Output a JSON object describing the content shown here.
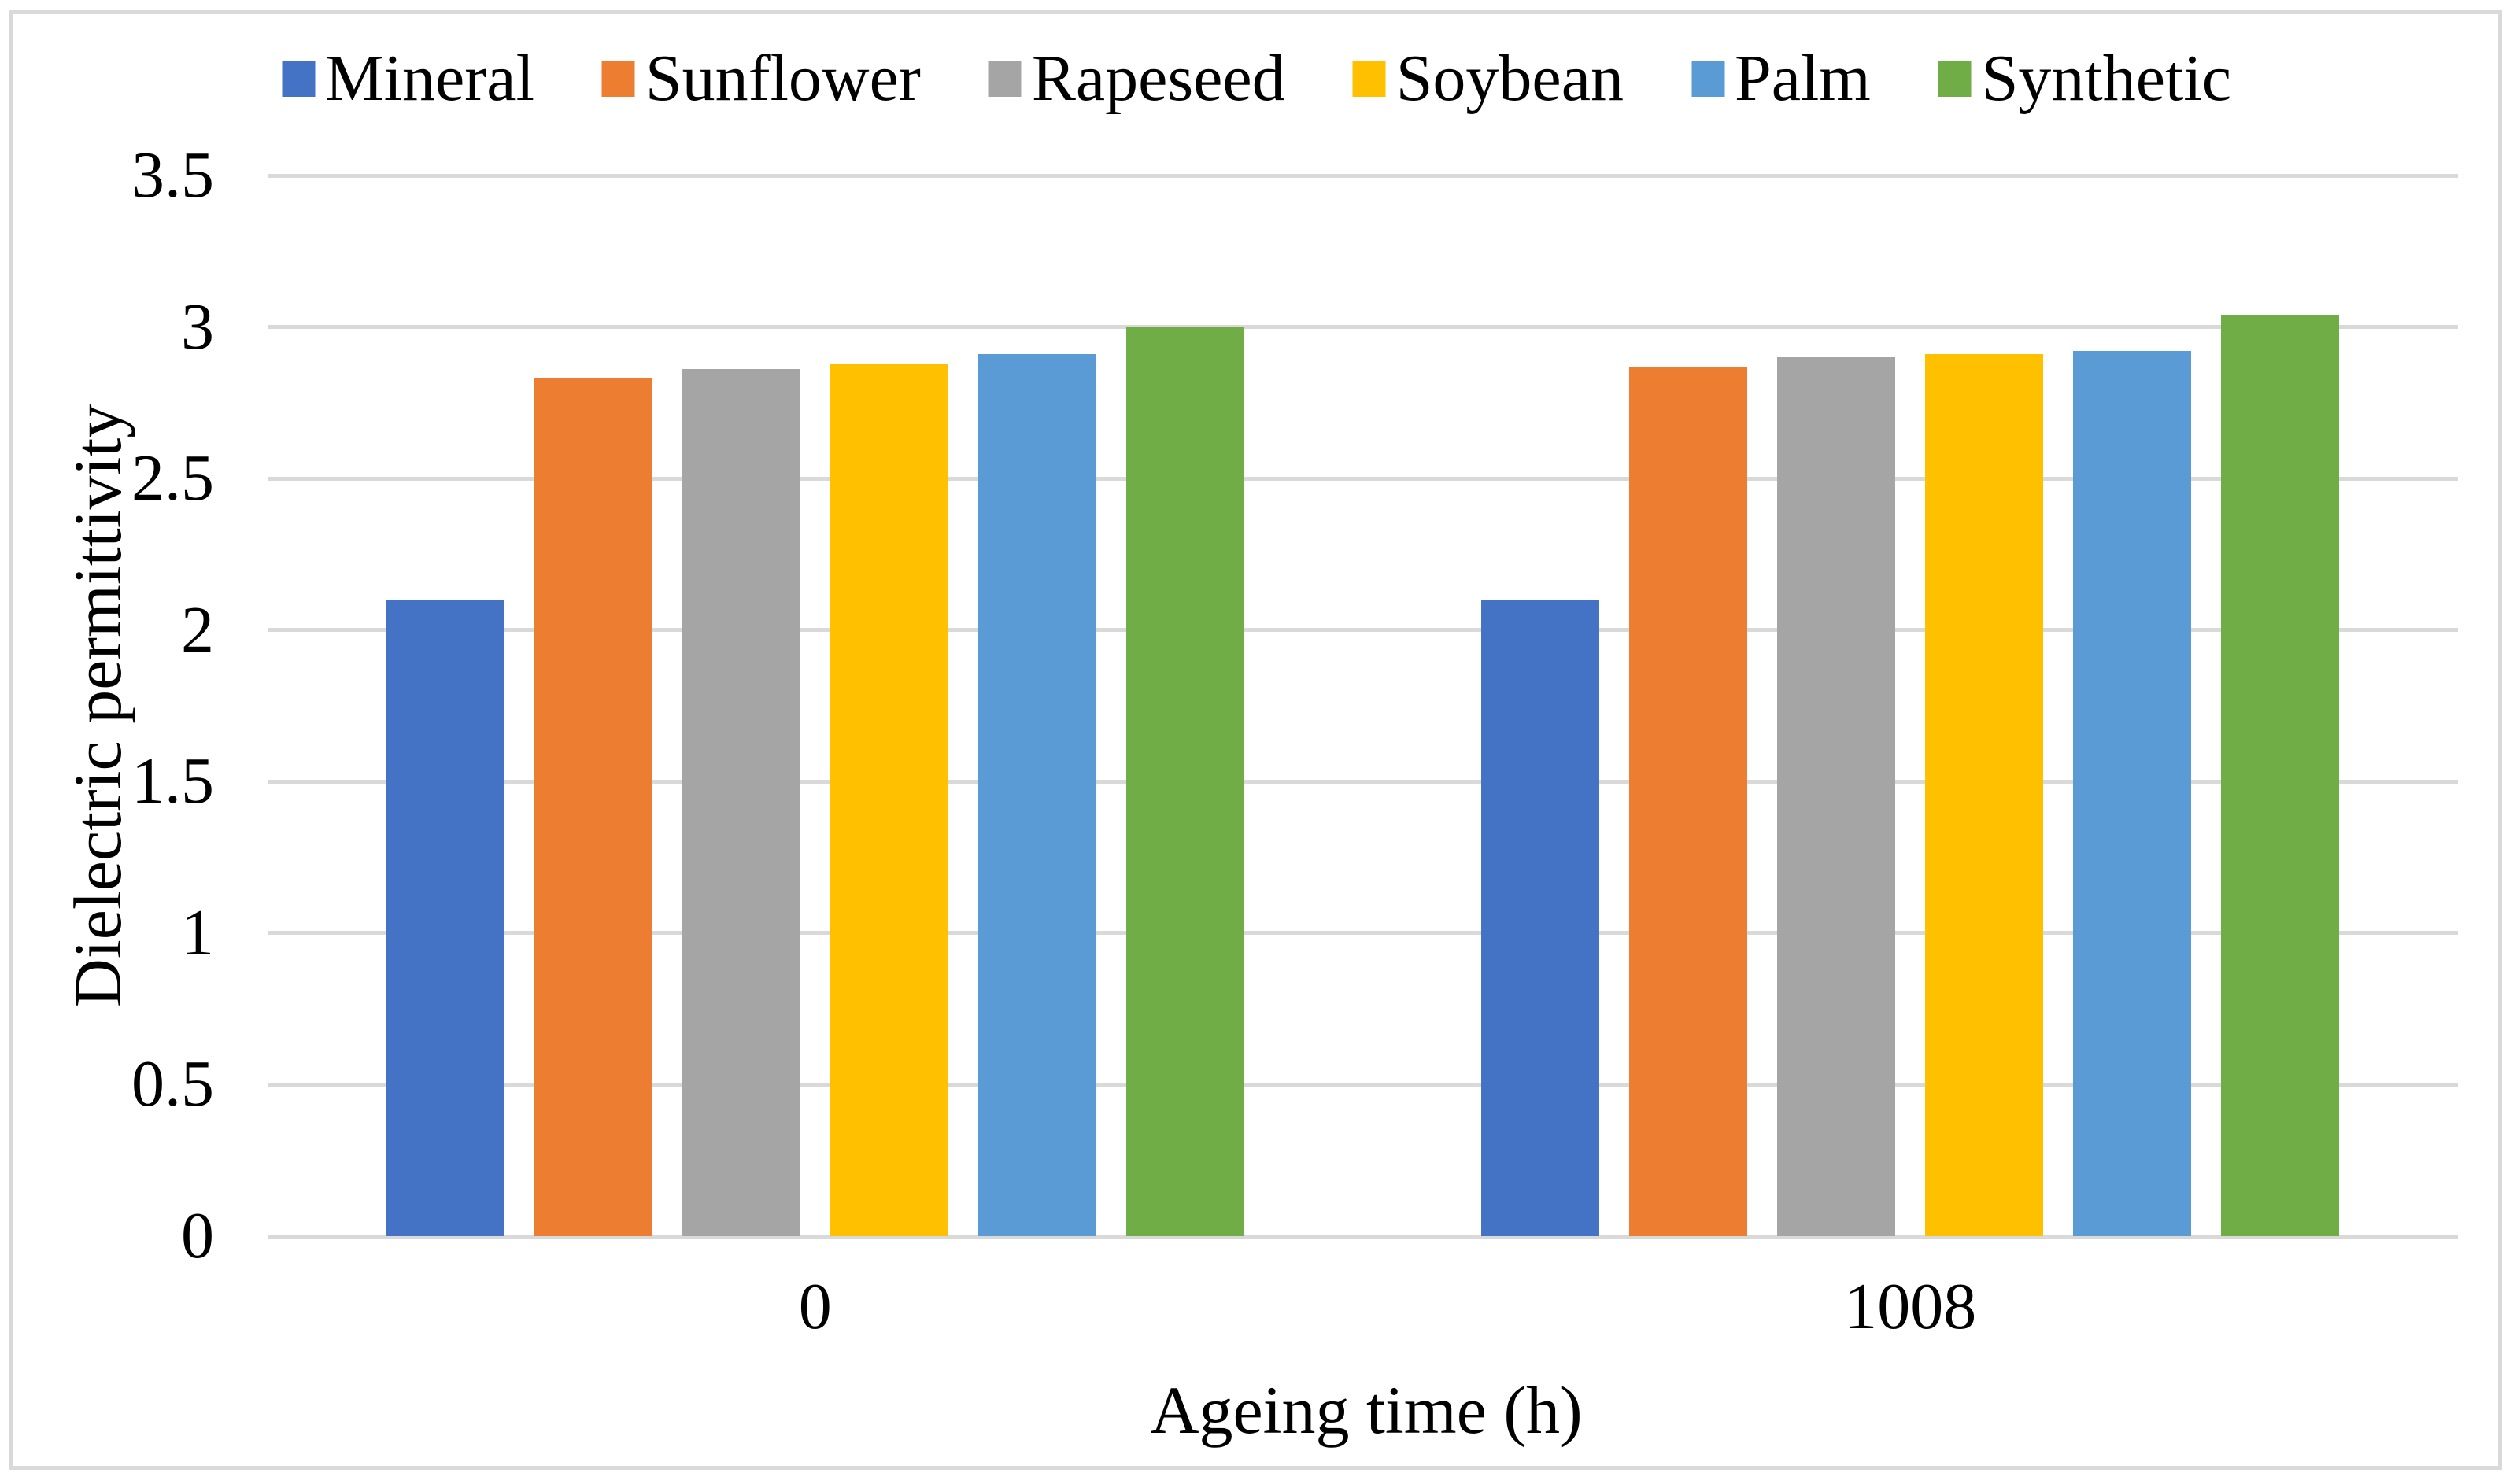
{
  "figure": {
    "background": "#FFFFFF",
    "border_color": "#D9D9D9"
  },
  "chart_data": {
    "type": "bar",
    "title": "",
    "xlabel": "Ageing time (h)",
    "ylabel": "Dielectric permittivity",
    "categories": [
      "0",
      "1008"
    ],
    "series": [
      {
        "name": "Mineral",
        "color": "#4472C4",
        "values": [
          2.1,
          2.1
        ]
      },
      {
        "name": "Sunflower",
        "color": "#ED7D31",
        "values": [
          2.83,
          2.87
        ]
      },
      {
        "name": "Rapeseed",
        "color": "#A5A5A5",
        "values": [
          2.86,
          2.9
        ]
      },
      {
        "name": "Soybean",
        "color": "#FFC000",
        "values": [
          2.88,
          2.91
        ]
      },
      {
        "name": "Palm",
        "color": "#5B9BD5",
        "values": [
          2.91,
          2.92
        ]
      },
      {
        "name": "Synthetic",
        "color": "#70AD47",
        "values": [
          3.0,
          3.04
        ]
      }
    ],
    "ylim": [
      0,
      3.5
    ],
    "ytick_step": 0.5,
    "ytick_labels": [
      "0",
      "0.5",
      "1",
      "1.5",
      "2",
      "2.5",
      "3",
      "3.5"
    ],
    "grid": true,
    "gridline_color": "#D9D9D9",
    "legend_position": "top"
  }
}
